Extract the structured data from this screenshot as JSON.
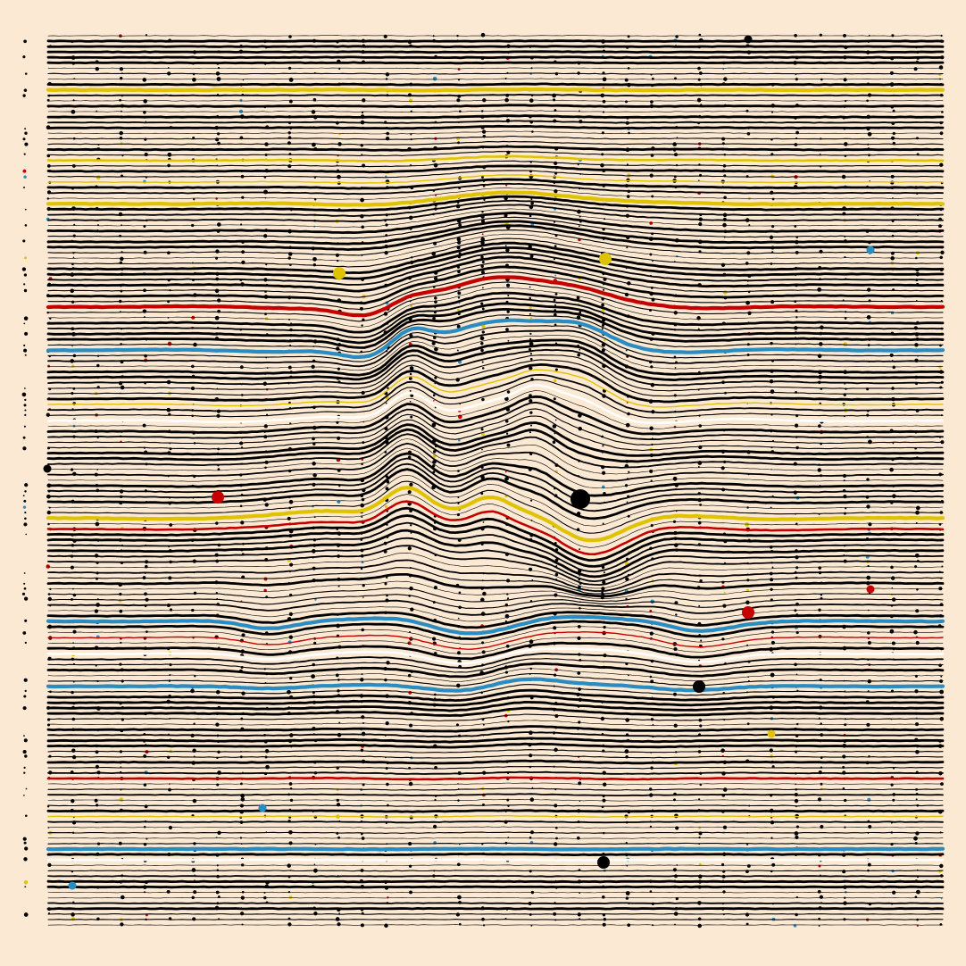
{
  "artwork": {
    "kind": "generative ridgeline line drawing",
    "background": "#fbe9d3",
    "ink": "#000000",
    "accents": {
      "yellow": "#e0c300",
      "red": "#c40000",
      "blue": "#2a8cc0",
      "white": "#ffffff"
    },
    "line_count": 165,
    "accent_lines": [
      {
        "row": 10,
        "color": "yellow",
        "weight": "heavy"
      },
      {
        "row": 23,
        "color": "yellow",
        "weight": "medium"
      },
      {
        "row": 27,
        "color": "yellow",
        "weight": "light"
      },
      {
        "row": 31,
        "color": "yellow",
        "weight": "heavy"
      },
      {
        "row": 50,
        "color": "red",
        "weight": "heavy"
      },
      {
        "row": 58,
        "color": "blue",
        "weight": "heavy"
      },
      {
        "row": 68,
        "color": "yellow",
        "weight": "light"
      },
      {
        "row": 71,
        "color": "white",
        "weight": "medium"
      },
      {
        "row": 89,
        "color": "yellow",
        "weight": "heavy"
      },
      {
        "row": 91,
        "color": "red",
        "weight": "medium"
      },
      {
        "row": 108,
        "color": "blue",
        "weight": "heavy"
      },
      {
        "row": 111,
        "color": "red",
        "weight": "light"
      },
      {
        "row": 114,
        "color": "white",
        "weight": "medium"
      },
      {
        "row": 120,
        "color": "blue",
        "weight": "heavy"
      },
      {
        "row": 137,
        "color": "red",
        "weight": "medium"
      },
      {
        "row": 144,
        "color": "yellow",
        "weight": "light"
      },
      {
        "row": 150,
        "color": "blue",
        "weight": "heavy"
      },
      {
        "row": 152,
        "color": "white",
        "weight": "medium"
      }
    ],
    "feature_dots": [
      {
        "color": "black",
        "size": "large"
      },
      {
        "color": "black",
        "size": "medium"
      },
      {
        "color": "black",
        "size": "medium"
      },
      {
        "color": "black",
        "size": "small"
      },
      {
        "color": "black",
        "size": "small"
      },
      {
        "color": "red",
        "size": "medium"
      },
      {
        "color": "red",
        "size": "medium"
      },
      {
        "color": "red",
        "size": "small"
      },
      {
        "color": "yellow",
        "size": "medium"
      },
      {
        "color": "yellow",
        "size": "medium"
      },
      {
        "color": "yellow",
        "size": "small"
      },
      {
        "color": "blue",
        "size": "small"
      },
      {
        "color": "blue",
        "size": "small"
      },
      {
        "color": "blue",
        "size": "small"
      }
    ]
  }
}
